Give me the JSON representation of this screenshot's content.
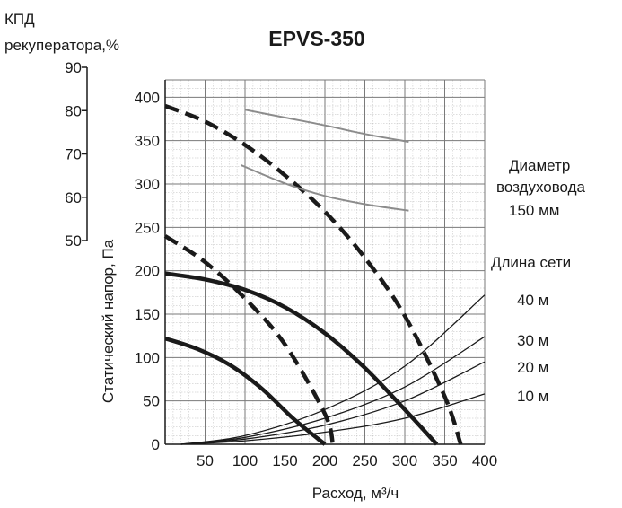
{
  "chart_data": {
    "type": "line",
    "title": "EPVS-350",
    "xlabel": "Расход, м³/ч",
    "ylabel": "Статический напор, Па",
    "y2label_line1": "КПД",
    "y2label_line2": "рекуператора,%",
    "xlim": [
      0,
      400
    ],
    "ylim": [
      0,
      420
    ],
    "y2lim": [
      50,
      90
    ],
    "x_ticks": [
      50,
      100,
      150,
      200,
      250,
      300,
      350,
      400
    ],
    "y_ticks": [
      0,
      50,
      100,
      150,
      200,
      250,
      300,
      350,
      400
    ],
    "y2_ticks": [
      50,
      60,
      70,
      80,
      90
    ],
    "grid": true,
    "annotations": {
      "diameter_line1": "Диаметр",
      "diameter_line2": "воздуховода",
      "diameter_value": "150 мм",
      "network_title": "Длина сети",
      "network_lengths": [
        "40 м",
        "30 м",
        "20 м",
        "10 м"
      ]
    },
    "series": [
      {
        "style": "thick-solid",
        "x": [
          0,
          40,
          80,
          120,
          160,
          200
        ],
        "y": [
          122,
          110,
          92,
          65,
          30,
          0
        ]
      },
      {
        "style": "thick-dashed",
        "x": [
          0,
          50,
          100,
          150,
          200,
          210
        ],
        "y": [
          240,
          210,
          168,
          115,
          35,
          0
        ]
      },
      {
        "style": "thick-solid",
        "x": [
          0,
          50,
          100,
          150,
          200,
          250,
          300,
          340
        ],
        "y": [
          197,
          190,
          178,
          158,
          128,
          88,
          40,
          0
        ]
      },
      {
        "style": "thick-dashed",
        "x": [
          0,
          50,
          100,
          150,
          200,
          250,
          300,
          350,
          370
        ],
        "y": [
          390,
          372,
          345,
          310,
          268,
          215,
          148,
          55,
          0
        ]
      },
      {
        "style": "gray-efficiency",
        "x": [
          100,
          150,
          200,
          250,
          305
        ],
        "y": [
          80.2,
          78.4,
          76.6,
          74.6,
          72.8
        ]
      },
      {
        "style": "gray-efficiency",
        "x": [
          95,
          150,
          200,
          250,
          305
        ],
        "y": [
          67.4,
          63.2,
          60.3,
          58.4,
          56.9
        ]
      },
      {
        "name": "40 м",
        "style": "thin",
        "x": [
          20,
          100,
          200,
          300,
          400
        ],
        "y": [
          0,
          10,
          40,
          90,
          172
        ]
      },
      {
        "name": "30 м",
        "style": "thin",
        "x": [
          20,
          100,
          200,
          300,
          400
        ],
        "y": [
          0,
          8,
          30,
          66,
          124
        ]
      },
      {
        "name": "20 м",
        "style": "thin",
        "x": [
          20,
          100,
          200,
          300,
          400
        ],
        "y": [
          0,
          6,
          22,
          50,
          95
        ]
      },
      {
        "name": "10 м",
        "style": "thin",
        "x": [
          20,
          100,
          200,
          300,
          400
        ],
        "y": [
          0,
          4,
          14,
          30,
          58
        ]
      }
    ]
  }
}
